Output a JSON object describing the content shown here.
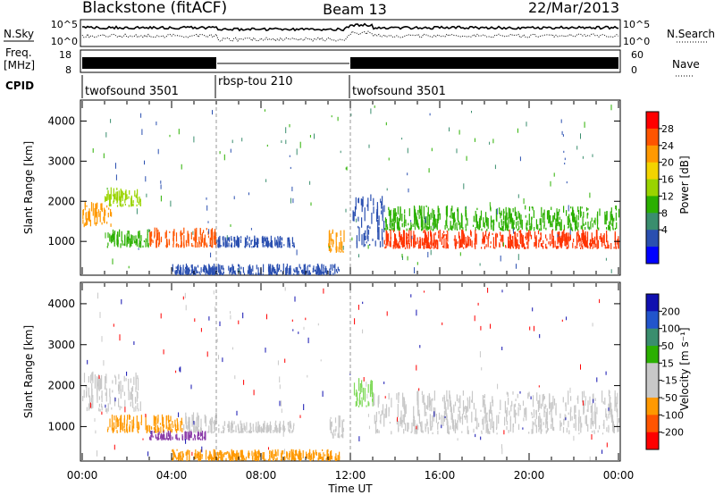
{
  "header": {
    "station": "Blackstone (fitACF)",
    "beam": "Beam 13",
    "date": "22/Mar/2013"
  },
  "summary_panels": {
    "nsky": {
      "left_label": "N.Sky",
      "right_label": "N.Search",
      "left_ticks": [
        "10^5",
        "10^0"
      ],
      "right_ticks": [
        "10^5",
        "10^0"
      ]
    },
    "freq": {
      "left_label_line1": "Freq.",
      "left_label_line2": "[MHz]",
      "right_label": "Nave",
      "left_ticks": [
        "18",
        "8"
      ],
      "right_ticks": [
        "60",
        "0"
      ]
    },
    "cpid": {
      "label": "CPID",
      "segments": [
        {
          "name": "twofsound 3501",
          "start": 0,
          "end": 6
        },
        {
          "name": "rbsp-tou 210",
          "start": 6,
          "end": 12
        },
        {
          "name": "twofsound 3501",
          "start": 12,
          "end": 24
        }
      ]
    }
  },
  "chart_data": [
    {
      "type": "heatmap",
      "name": "power",
      "ylabel": "Slant Range [km]",
      "xlim": [
        0,
        24
      ],
      "ylim": [
        180,
        4500
      ],
      "yticks": [
        1000,
        2000,
        3000,
        4000
      ],
      "colorbar": {
        "label": "Power [dB]",
        "ticks": [
          "28",
          "24",
          "20",
          "16",
          "12",
          "8",
          "4"
        ],
        "colors": [
          "#ff0000",
          "#ff5500",
          "#ff9900",
          "#f3d400",
          "#9ad400",
          "#2bb000",
          "#3a8e6e",
          "#2a4fb0",
          "#0000ff"
        ]
      },
      "regions": [
        {
          "t0": 0.0,
          "t1": 1.3,
          "r0": 1400,
          "r1": 2000,
          "color": "#ff9900"
        },
        {
          "t0": 1.0,
          "t1": 2.6,
          "r0": 1900,
          "r1": 2350,
          "color": "#9ad400"
        },
        {
          "t0": 1.1,
          "t1": 3.0,
          "r0": 880,
          "r1": 1300,
          "color": "#2bb000"
        },
        {
          "t0": 3.0,
          "t1": 6.0,
          "r0": 880,
          "r1": 1350,
          "color": "#ff5500"
        },
        {
          "t0": 6.0,
          "t1": 9.5,
          "r0": 880,
          "r1": 1150,
          "color": "#2a4fb0"
        },
        {
          "t0": 11.0,
          "t1": 11.7,
          "r0": 750,
          "r1": 1300,
          "color": "#ff9900"
        },
        {
          "t0": 12.1,
          "t1": 13.5,
          "r0": 850,
          "r1": 2200,
          "color": "#2a4fb0"
        },
        {
          "t0": 13.5,
          "t1": 24.0,
          "r0": 1300,
          "r1": 1900,
          "color": "#2bb000"
        },
        {
          "t0": 13.5,
          "t1": 24.0,
          "r0": 850,
          "r1": 1300,
          "color": "#ff3300"
        },
        {
          "t0": 4.0,
          "t1": 11.5,
          "r0": 200,
          "r1": 450,
          "color": "#2a4fb0"
        }
      ]
    },
    {
      "type": "heatmap",
      "name": "velocity",
      "ylabel": "Slant Range [km]",
      "xlabel": "Time UT",
      "xlim": [
        0,
        24
      ],
      "ylim": [
        180,
        4500
      ],
      "yticks": [
        1000,
        2000,
        3000,
        4000
      ],
      "xticks": [
        "00:00",
        "04:00",
        "08:00",
        "12:00",
        "16:00",
        "20:00",
        "00:00"
      ],
      "colorbar": {
        "label": "Velocity [m s⁻¹]",
        "ticks": [
          "200",
          "100",
          "50",
          "15",
          "-15",
          "-50",
          "-100",
          "-200"
        ],
        "colors": [
          "#1010b0",
          "#2255cc",
          "#3a8e6e",
          "#2bb000",
          "#c8c8c8",
          "#c8c8c8",
          "#ff9900",
          "#ff5500",
          "#ff0000"
        ]
      },
      "regions": [
        {
          "t0": 0.0,
          "t1": 2.6,
          "r0": 1400,
          "r1": 2350,
          "color": "#c8c8c8"
        },
        {
          "t0": 1.1,
          "t1": 4.5,
          "r0": 880,
          "r1": 1300,
          "color": "#ff9900"
        },
        {
          "t0": 4.5,
          "t1": 6.0,
          "r0": 880,
          "r1": 1350,
          "color": "#c8c8c8"
        },
        {
          "t0": 6.0,
          "t1": 9.5,
          "r0": 880,
          "r1": 1150,
          "color": "#c8c8c8"
        },
        {
          "t0": 11.0,
          "t1": 11.7,
          "r0": 750,
          "r1": 1300,
          "color": "#c8c8c8"
        },
        {
          "t0": 12.1,
          "t1": 13.0,
          "r0": 1500,
          "r1": 2200,
          "color": "#7ed957"
        },
        {
          "t0": 13.0,
          "t1": 24.0,
          "r0": 850,
          "r1": 1900,
          "color": "#c8c8c8"
        },
        {
          "t0": 3.0,
          "t1": 5.5,
          "r0": 700,
          "r1": 900,
          "color": "#8a3aa8"
        },
        {
          "t0": 4.0,
          "t1": 11.5,
          "r0": 200,
          "r1": 450,
          "color": "#ff9900"
        }
      ]
    }
  ]
}
